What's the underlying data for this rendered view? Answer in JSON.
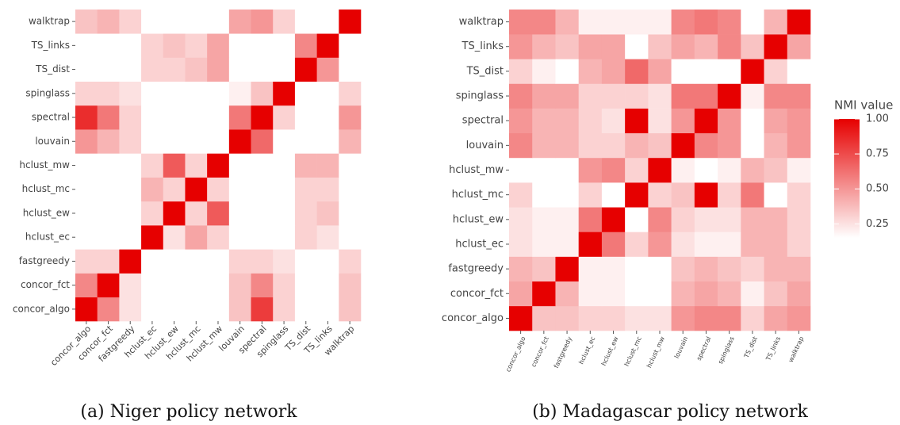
{
  "chart_data": [
    {
      "type": "heatmap",
      "caption": "(a) Niger policy network",
      "categories": [
        "concor_algo",
        "concor_fct",
        "fastgreedy",
        "hclust_ec",
        "hclust_ew",
        "hclust_mc",
        "hclust_mw",
        "louvain",
        "spectral",
        "spinglass",
        "TS_dist",
        "TS_links",
        "walktrap"
      ],
      "matrix": [
        [
          1,
          0.55,
          0.25,
          0.1,
          0.08,
          0.05,
          0.05,
          0.35,
          0.8,
          0.3,
          0.05,
          0.05,
          0.35
        ],
        [
          0.55,
          1,
          0.25,
          0.08,
          0.05,
          0.05,
          0.05,
          0.35,
          0.55,
          0.3,
          0.05,
          0.05,
          0.35
        ],
        [
          0.3,
          0.3,
          1,
          0.05,
          0.03,
          0.03,
          0.03,
          0.3,
          0.3,
          0.25,
          0.08,
          0.05,
          0.3
        ],
        [
          0.1,
          0.1,
          0.08,
          1,
          0.25,
          0.45,
          0.3,
          0.12,
          0.1,
          0.08,
          0.3,
          0.25,
          0.08
        ],
        [
          0.1,
          0.05,
          0.03,
          0.3,
          1,
          0.3,
          0.7,
          0.05,
          0.05,
          0.03,
          0.3,
          0.35,
          0.03
        ],
        [
          0.03,
          0.03,
          0.02,
          0.4,
          0.3,
          1,
          0.3,
          0.03,
          0.03,
          0.02,
          0.3,
          0.3,
          0.03
        ],
        [
          0.08,
          0.05,
          0.03,
          0.3,
          0.7,
          0.3,
          1,
          0.05,
          0.05,
          0.03,
          0.4,
          0.4,
          0.03
        ],
        [
          0.5,
          0.4,
          0.3,
          0.08,
          0.05,
          0.05,
          0.05,
          1,
          0.65,
          0.15,
          0.05,
          0.05,
          0.4
        ],
        [
          0.85,
          0.6,
          0.3,
          0.05,
          0.03,
          0.03,
          0.03,
          0.6,
          1,
          0.3,
          0.03,
          0.03,
          0.5
        ],
        [
          0.3,
          0.3,
          0.25,
          0.05,
          0.02,
          0.02,
          0.02,
          0.2,
          0.35,
          1,
          0.05,
          0.05,
          0.3
        ],
        [
          0.05,
          0.05,
          0.05,
          0.3,
          0.3,
          0.35,
          0.45,
          0.05,
          0.03,
          0.03,
          1,
          0.5,
          0.1
        ],
        [
          0.05,
          0.05,
          0.05,
          0.3,
          0.35,
          0.3,
          0.45,
          0.05,
          0.03,
          0.05,
          0.55,
          1,
          0.05
        ],
        [
          0.35,
          0.4,
          0.3,
          0.05,
          0.03,
          0.03,
          0.03,
          0.45,
          0.5,
          0.3,
          0.08,
          0.05,
          1
        ]
      ]
    },
    {
      "type": "heatmap",
      "caption": "(b) Madagascar policy network",
      "categories": [
        "concor_algo",
        "concor_fct",
        "fastgreedy",
        "hclust_ec",
        "hclust_ew",
        "hclust_mc",
        "hclust_mw",
        "louvain",
        "spectral",
        "spinglass",
        "TS_dist",
        "TS_links",
        "walktrap"
      ],
      "matrix": [
        [
          1,
          0.35,
          0.35,
          0.3,
          0.3,
          0.25,
          0.25,
          0.5,
          0.55,
          0.55,
          0.3,
          0.45,
          0.5
        ],
        [
          0.45,
          1,
          0.4,
          0.2,
          0.2,
          0.15,
          0.15,
          0.4,
          0.45,
          0.4,
          0.2,
          0.35,
          0.45
        ],
        [
          0.4,
          0.35,
          1,
          0.2,
          0.2,
          0.15,
          0.1,
          0.35,
          0.4,
          0.35,
          0.3,
          0.4,
          0.4
        ],
        [
          0.25,
          0.2,
          0.2,
          1,
          0.6,
          0.3,
          0.5,
          0.25,
          0.2,
          0.2,
          0.4,
          0.4,
          0.3
        ],
        [
          0.25,
          0.2,
          0.2,
          0.6,
          1,
          0.05,
          0.55,
          0.3,
          0.25,
          0.25,
          0.4,
          0.4,
          0.3
        ],
        [
          0.3,
          0.1,
          0.1,
          0.3,
          0.05,
          1,
          0.3,
          0.35,
          1,
          0.3,
          0.6,
          0.1,
          0.3
        ],
        [
          0.1,
          0.1,
          0.05,
          0.5,
          0.55,
          0.3,
          1,
          0.2,
          0.15,
          0.2,
          0.4,
          0.35,
          0.2
        ],
        [
          0.55,
          0.4,
          0.4,
          0.3,
          0.3,
          0.4,
          0.35,
          1,
          0.55,
          0.5,
          0.15,
          0.4,
          0.5
        ],
        [
          0.5,
          0.4,
          0.4,
          0.3,
          0.25,
          1,
          0.25,
          0.5,
          1,
          0.5,
          0.15,
          0.45,
          0.5
        ],
        [
          0.55,
          0.45,
          0.45,
          0.3,
          0.3,
          0.3,
          0.25,
          0.6,
          0.6,
          1,
          0.2,
          0.55,
          0.55
        ],
        [
          0.3,
          0.2,
          0.15,
          0.4,
          0.45,
          0.65,
          0.45,
          0.15,
          0.1,
          0.15,
          1,
          0.3,
          0.1
        ],
        [
          0.5,
          0.4,
          0.35,
          0.45,
          0.45,
          0.05,
          0.35,
          0.45,
          0.4,
          0.55,
          0.35,
          1,
          0.45
        ],
        [
          0.55,
          0.55,
          0.4,
          0.2,
          0.2,
          0.2,
          0.2,
          0.55,
          0.6,
          0.55,
          0.15,
          0.4,
          1
        ]
      ],
      "colorbar": {
        "title": "NMI value",
        "lim": [
          0.15,
          1
        ],
        "low_color": "#ffffff",
        "high_color": "#e60000",
        "ticks": [
          0.25,
          {
            "value": 0.5,
            "label": "0.50"
          },
          0.75,
          {
            "value": 1,
            "label": "1.00"
          }
        ]
      }
    }
  ]
}
